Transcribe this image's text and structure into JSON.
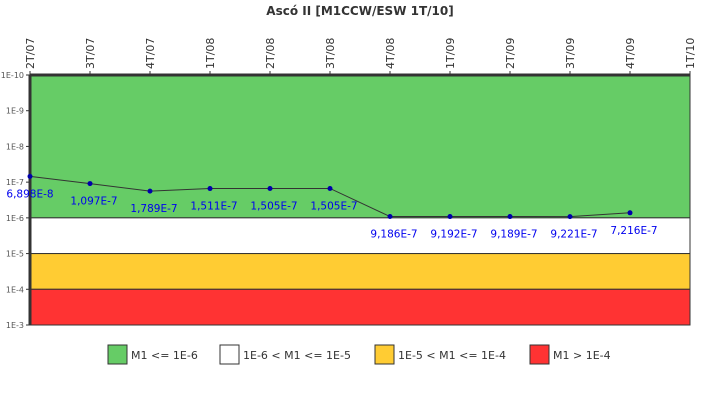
{
  "chart_data": {
    "type": "line",
    "title": "Ascó II [M1CCW/ESW 1T/10]",
    "x_categories": [
      "2T/07",
      "3T/07",
      "4T/07",
      "1T/08",
      "2T/08",
      "3T/08",
      "4T/08",
      "1T/09",
      "2T/09",
      "3T/09",
      "4T/09",
      "1T/10"
    ],
    "y_scale": "log",
    "y_inverted": true,
    "ylim": [
      1e-10,
      0.001
    ],
    "y_ticks": [
      "1E-10",
      "1E-9",
      "1E-8",
      "1E-7",
      "1E-6",
      "1E-5",
      "1E-4",
      "1E-3"
    ],
    "series": [
      {
        "x": [
          "2T/07",
          "3T/07",
          "4T/07",
          "1T/08",
          "2T/08",
          "3T/08",
          "4T/08",
          "1T/09",
          "2T/09",
          "3T/09",
          "4T/09"
        ],
        "values": [
          6.898e-08,
          1.097e-07,
          1.789e-07,
          1.511e-07,
          1.505e-07,
          1.505e-07,
          9.186e-07,
          9.192e-07,
          9.189e-07,
          9.221e-07,
          7.216e-07
        ],
        "labels": [
          "6,898E-8",
          "1,097E-7",
          "1,789E-7",
          "1,511E-7",
          "1,505E-7",
          "1,505E-7",
          "9,186E-7",
          "9,192E-7",
          "9,189E-7",
          "9,221E-7",
          "7,216E-7"
        ],
        "color": "#0000aa"
      }
    ],
    "bands": [
      {
        "label": "M1 <= 1E-6",
        "from": 1e-10,
        "to": 1e-06,
        "color": "#66cc66"
      },
      {
        "label": "1E-6 < M1 <= 1E-5",
        "from": 1e-06,
        "to": 1e-05,
        "color": "#ffffff"
      },
      {
        "label": "1E-5 < M1 <= 1E-4",
        "from": 1e-05,
        "to": 0.0001,
        "color": "#ffcc33"
      },
      {
        "label": "M1 > 1E-4",
        "from": 0.0001,
        "to": 0.001,
        "color": "#ff3333"
      }
    ],
    "legend_position": "bottom",
    "grid": false
  }
}
